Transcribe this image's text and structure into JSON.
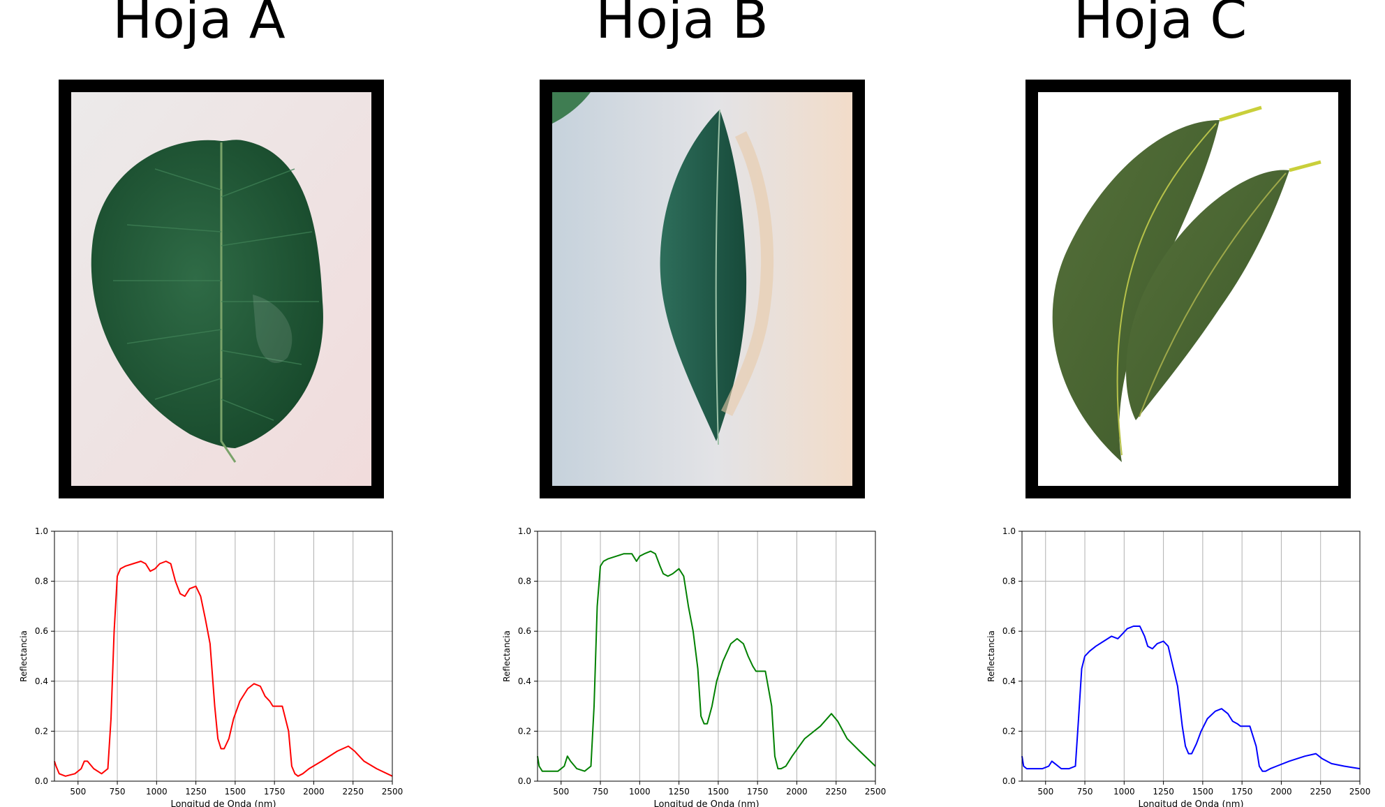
{
  "panels": [
    {
      "title": "Hoja A",
      "photo": "broad-oval-leaf-photo"
    },
    {
      "title": "Hoja B",
      "photo": "lanceolate-leaf-photo"
    },
    {
      "title": "Hoja C",
      "photo": "eucalyptus-leaves-photo"
    }
  ],
  "chart_data": [
    {
      "type": "line",
      "color": "#ff0000",
      "xlabel": "Longitud de Onda (nm)",
      "ylabel": "Reflectancia",
      "xlim": [
        350,
        2500
      ],
      "ylim": [
        0,
        1.0
      ],
      "xticks": [
        500,
        750,
        1000,
        1250,
        1500,
        1750,
        2000,
        2250,
        2500
      ],
      "yticks": [
        "0.0",
        "0.2",
        "0.4",
        "0.6",
        "0.8",
        "1.0"
      ],
      "grid": true,
      "x": [
        350,
        360,
        380,
        420,
        480,
        520,
        540,
        560,
        600,
        650,
        690,
        710,
        730,
        750,
        770,
        800,
        850,
        900,
        930,
        960,
        990,
        1020,
        1060,
        1090,
        1120,
        1150,
        1180,
        1210,
        1250,
        1280,
        1310,
        1340,
        1370,
        1390,
        1410,
        1430,
        1460,
        1490,
        1530,
        1580,
        1620,
        1660,
        1690,
        1720,
        1740,
        1770,
        1800,
        1840,
        1860,
        1880,
        1900,
        1930,
        1970,
        2050,
        2150,
        2220,
        2260,
        2320,
        2400,
        2500
      ],
      "y": [
        0.08,
        0.06,
        0.03,
        0.02,
        0.03,
        0.05,
        0.08,
        0.08,
        0.05,
        0.03,
        0.05,
        0.25,
        0.6,
        0.82,
        0.85,
        0.86,
        0.87,
        0.88,
        0.87,
        0.84,
        0.85,
        0.87,
        0.88,
        0.87,
        0.8,
        0.75,
        0.74,
        0.77,
        0.78,
        0.74,
        0.65,
        0.55,
        0.3,
        0.17,
        0.13,
        0.13,
        0.17,
        0.25,
        0.32,
        0.37,
        0.39,
        0.38,
        0.34,
        0.32,
        0.3,
        0.3,
        0.3,
        0.2,
        0.06,
        0.03,
        0.02,
        0.03,
        0.05,
        0.08,
        0.12,
        0.14,
        0.12,
        0.08,
        0.05,
        0.02
      ]
    },
    {
      "type": "line",
      "color": "#008000",
      "xlabel": "Longitud de Onda (nm)",
      "ylabel": "Reflectancia",
      "xlim": [
        350,
        2500
      ],
      "ylim": [
        0,
        1.0
      ],
      "xticks": [
        500,
        750,
        1000,
        1250,
        1500,
        1750,
        2000,
        2250,
        2500
      ],
      "yticks": [
        "0.0",
        "0.2",
        "0.4",
        "0.6",
        "0.8",
        "1.0"
      ],
      "grid": true,
      "x": [
        350,
        360,
        380,
        420,
        480,
        520,
        540,
        560,
        600,
        650,
        690,
        710,
        730,
        750,
        770,
        800,
        850,
        900,
        950,
        980,
        1000,
        1030,
        1070,
        1100,
        1130,
        1150,
        1180,
        1210,
        1250,
        1280,
        1310,
        1340,
        1370,
        1390,
        1410,
        1430,
        1460,
        1490,
        1530,
        1580,
        1620,
        1660,
        1690,
        1720,
        1740,
        1770,
        1800,
        1840,
        1860,
        1880,
        1900,
        1930,
        1970,
        2050,
        2150,
        2220,
        2260,
        2320,
        2400,
        2500
      ],
      "y": [
        0.1,
        0.06,
        0.04,
        0.04,
        0.04,
        0.06,
        0.1,
        0.08,
        0.05,
        0.04,
        0.06,
        0.3,
        0.7,
        0.86,
        0.88,
        0.89,
        0.9,
        0.91,
        0.91,
        0.88,
        0.9,
        0.91,
        0.92,
        0.91,
        0.86,
        0.83,
        0.82,
        0.83,
        0.85,
        0.82,
        0.7,
        0.6,
        0.45,
        0.26,
        0.23,
        0.23,
        0.3,
        0.4,
        0.48,
        0.55,
        0.57,
        0.55,
        0.5,
        0.46,
        0.44,
        0.44,
        0.44,
        0.3,
        0.1,
        0.05,
        0.05,
        0.06,
        0.1,
        0.17,
        0.22,
        0.27,
        0.24,
        0.17,
        0.12,
        0.06
      ]
    },
    {
      "type": "line",
      "color": "#0000ff",
      "xlabel": "Longitud de Onda (nm)",
      "ylabel": "Reflectancia",
      "xlim": [
        350,
        2500
      ],
      "ylim": [
        0,
        1.0
      ],
      "xticks": [
        500,
        750,
        1000,
        1250,
        1500,
        1750,
        2000,
        2250,
        2500
      ],
      "yticks": [
        "0.0",
        "0.2",
        "0.4",
        "0.6",
        "0.8",
        "1.0"
      ],
      "grid": true,
      "x": [
        350,
        360,
        380,
        420,
        480,
        520,
        540,
        560,
        600,
        650,
        690,
        710,
        730,
        750,
        780,
        820,
        870,
        920,
        960,
        990,
        1020,
        1060,
        1100,
        1130,
        1150,
        1180,
        1210,
        1250,
        1280,
        1310,
        1340,
        1370,
        1390,
        1410,
        1430,
        1460,
        1490,
        1530,
        1580,
        1620,
        1660,
        1690,
        1720,
        1740,
        1770,
        1800,
        1840,
        1860,
        1880,
        1900,
        1930,
        1970,
        2050,
        2150,
        2220,
        2260,
        2320,
        2400,
        2500
      ],
      "y": [
        0.1,
        0.06,
        0.05,
        0.05,
        0.05,
        0.06,
        0.08,
        0.07,
        0.05,
        0.05,
        0.06,
        0.25,
        0.45,
        0.5,
        0.52,
        0.54,
        0.56,
        0.58,
        0.57,
        0.59,
        0.61,
        0.62,
        0.62,
        0.58,
        0.54,
        0.53,
        0.55,
        0.56,
        0.54,
        0.46,
        0.38,
        0.22,
        0.14,
        0.11,
        0.11,
        0.15,
        0.2,
        0.25,
        0.28,
        0.29,
        0.27,
        0.24,
        0.23,
        0.22,
        0.22,
        0.22,
        0.14,
        0.06,
        0.04,
        0.04,
        0.05,
        0.06,
        0.08,
        0.1,
        0.11,
        0.09,
        0.07,
        0.06,
        0.05
      ]
    }
  ]
}
